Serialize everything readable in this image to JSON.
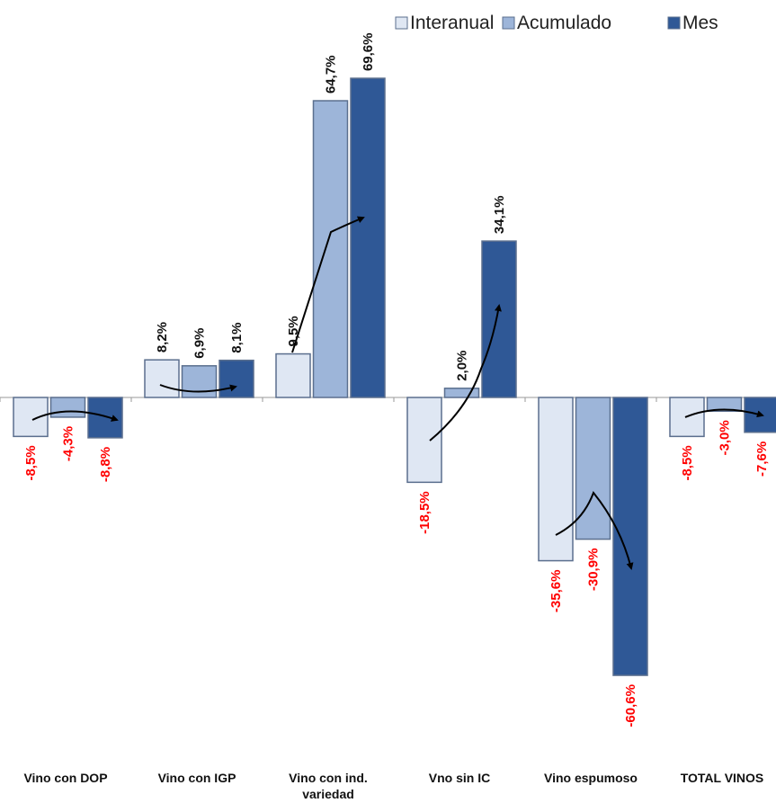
{
  "chart_data": {
    "type": "bar",
    "categories": [
      "Vino con DOP",
      "Vino con IGP",
      "Vino con ind. variedad",
      "Vno sin IC",
      "Vino espumoso",
      "TOTAL VINOS"
    ],
    "category_lines": [
      [
        "Vino con DOP"
      ],
      [
        "Vino con IGP"
      ],
      [
        "Vino con ind.",
        "variedad"
      ],
      [
        "Vno sin IC"
      ],
      [
        "Vino espumoso"
      ],
      [
        "TOTAL VINOS"
      ]
    ],
    "series": [
      {
        "name": "Interanual",
        "values": [
          -8.5,
          8.2,
          9.5,
          -18.5,
          -35.6,
          -8.5
        ],
        "color": "#dfe7f3"
      },
      {
        "name": "Acumulado",
        "values": [
          -4.3,
          6.9,
          64.7,
          2.0,
          -30.9,
          -3.0
        ],
        "color": "#9db5d9"
      },
      {
        "name": "Mes",
        "values": [
          -8.8,
          8.1,
          69.6,
          34.1,
          -60.6,
          -7.6
        ],
        "color": "#2f5896"
      }
    ],
    "labels": [
      [
        "-8,5%",
        "-4,3%",
        "-8,8%"
      ],
      [
        "8,2%",
        "6,9%",
        "8,1%"
      ],
      [
        "9,5%",
        "64,7%",
        "69,6%"
      ],
      [
        "-18,5%",
        "2,0%",
        "34,1%"
      ],
      [
        "-35,6%",
        "-30,9%",
        "-60,6%"
      ],
      [
        "-8,5%",
        "-3,0%",
        "-7,6%"
      ]
    ],
    "ylim": [
      -75,
      75
    ],
    "legend_position": "top-right",
    "colors": {
      "positive_label": "#111111",
      "negative_label": "#ff0000",
      "axis": "#999999",
      "arrow": "#000000"
    }
  }
}
